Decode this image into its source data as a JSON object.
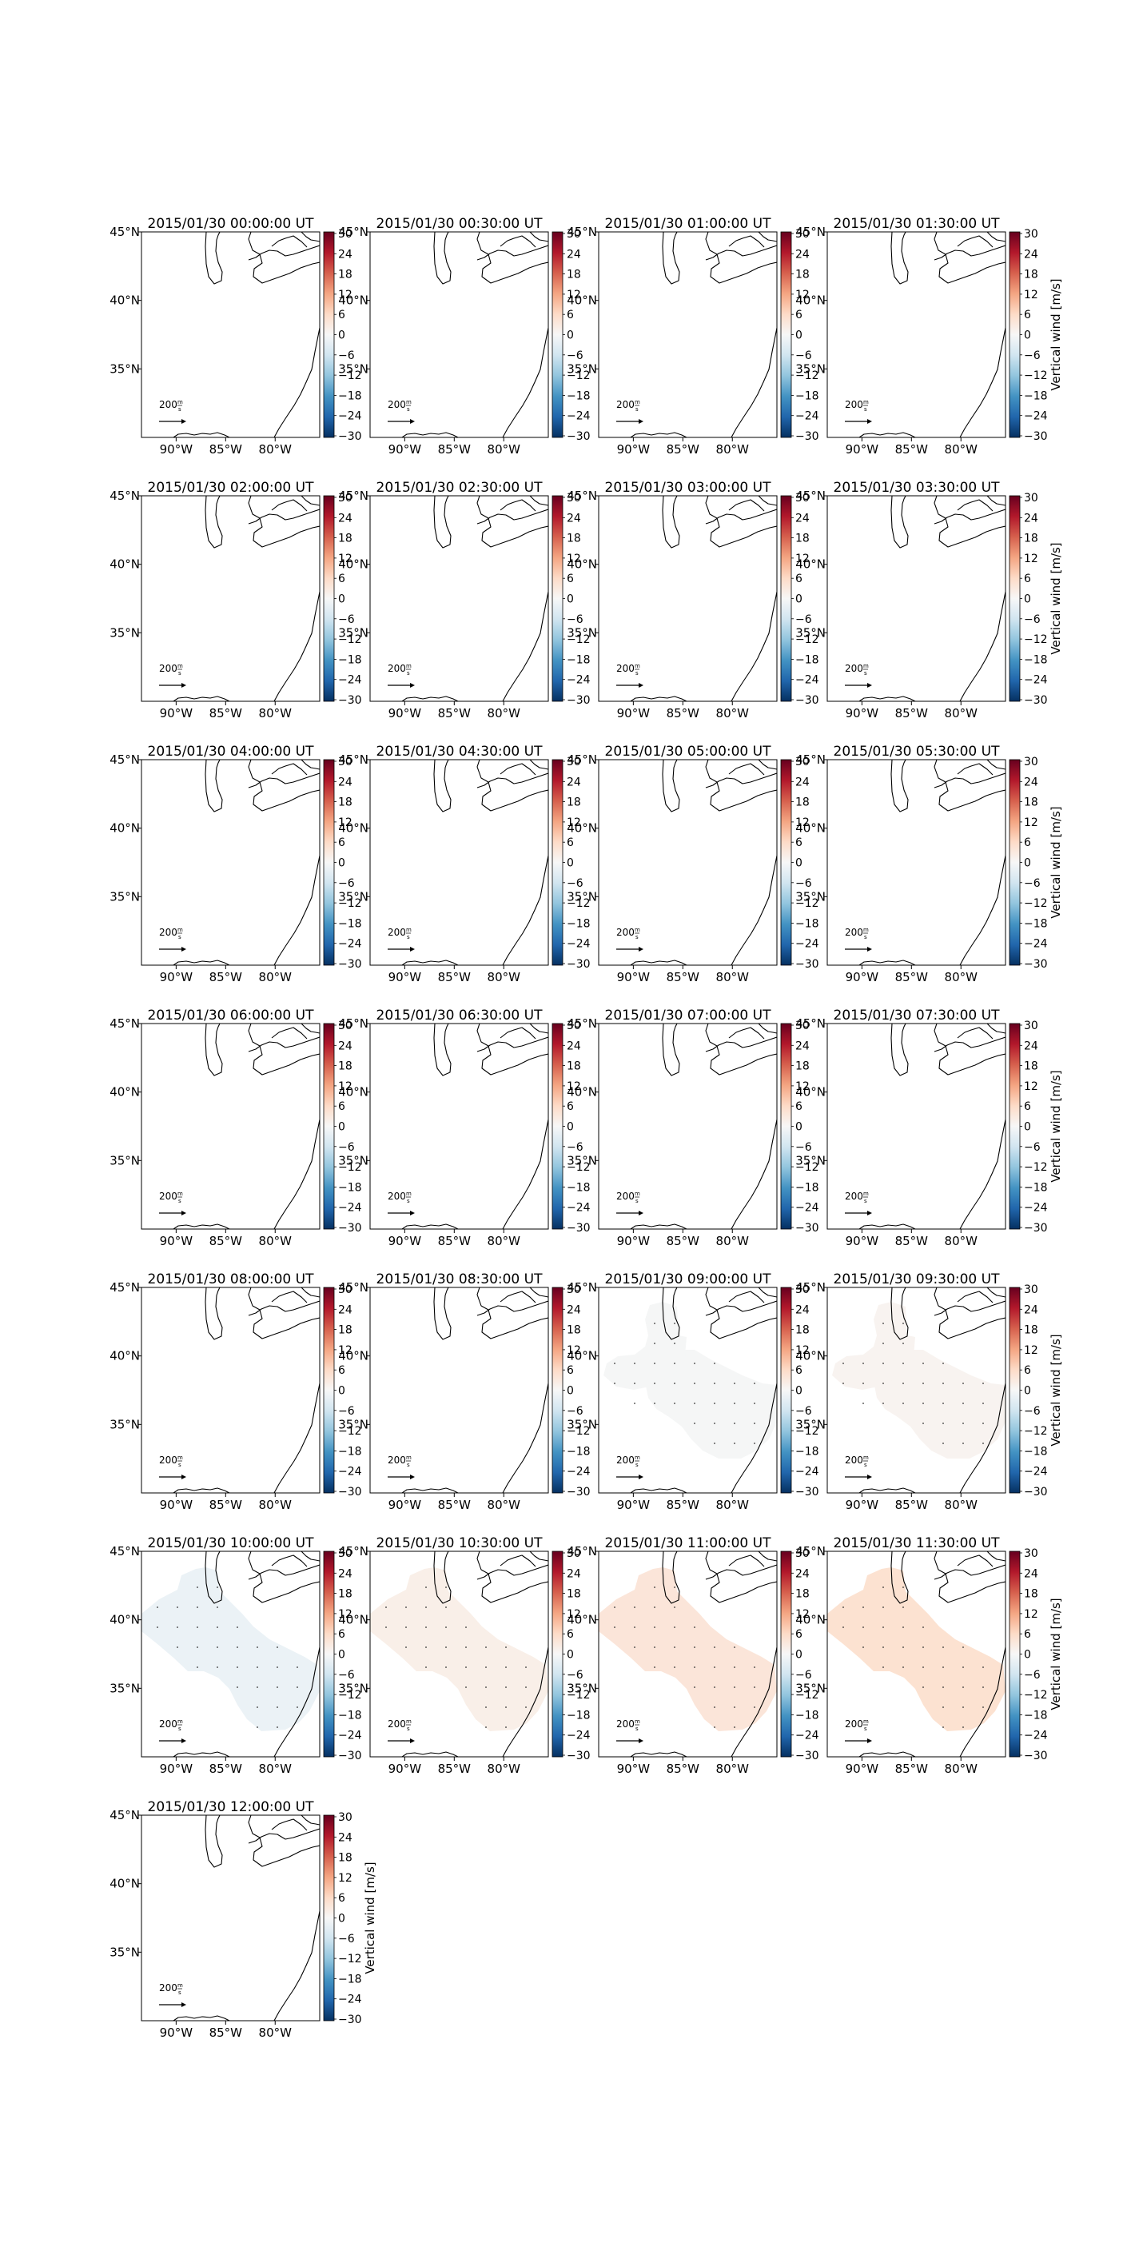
{
  "figure": {
    "colorbar_label": "Vertical wind [m/s]",
    "colorbar_ticks": [
      "30",
      "24",
      "18",
      "12",
      "6",
      "0",
      "−6",
      "−12",
      "−18",
      "−24",
      "−30"
    ],
    "lon_ticks": [
      "90°W",
      "85°W",
      "80°W"
    ],
    "lat_ticks": [
      "45°N",
      "40°N",
      "35°N"
    ],
    "scale_label": "200",
    "scale_unit_top": "m",
    "scale_unit_bottom": "s",
    "colormap": "RdBu_r",
    "colors": {
      "negative_extreme": "#053061",
      "zero": "#f7f7f7",
      "positive_extreme": "#67001f",
      "coast": "#000000"
    }
  },
  "chart_data": [
    {
      "type": "heatmap",
      "title": "2015/01/30 00:00:00 UT",
      "mean_vertical_wind": null,
      "clim": [
        -30,
        30
      ]
    },
    {
      "type": "heatmap",
      "title": "2015/01/30 00:30:00 UT",
      "mean_vertical_wind": null,
      "clim": [
        -30,
        30
      ]
    },
    {
      "type": "heatmap",
      "title": "2015/01/30 01:00:00 UT",
      "mean_vertical_wind": null,
      "clim": [
        -30,
        30
      ]
    },
    {
      "type": "heatmap",
      "title": "2015/01/30 01:30:00 UT",
      "mean_vertical_wind": null,
      "clim": [
        -30,
        30
      ]
    },
    {
      "type": "heatmap",
      "title": "2015/01/30 02:00:00 UT",
      "mean_vertical_wind": null,
      "clim": [
        -30,
        30
      ]
    },
    {
      "type": "heatmap",
      "title": "2015/01/30 02:30:00 UT",
      "mean_vertical_wind": null,
      "clim": [
        -30,
        30
      ]
    },
    {
      "type": "heatmap",
      "title": "2015/01/30 03:00:00 UT",
      "mean_vertical_wind": null,
      "clim": [
        -30,
        30
      ]
    },
    {
      "type": "heatmap",
      "title": "2015/01/30 03:30:00 UT",
      "mean_vertical_wind": null,
      "clim": [
        -30,
        30
      ]
    },
    {
      "type": "heatmap",
      "title": "2015/01/30 04:00:00 UT",
      "mean_vertical_wind": null,
      "clim": [
        -30,
        30
      ]
    },
    {
      "type": "heatmap",
      "title": "2015/01/30 04:30:00 UT",
      "mean_vertical_wind": null,
      "clim": [
        -30,
        30
      ]
    },
    {
      "type": "heatmap",
      "title": "2015/01/30 05:00:00 UT",
      "mean_vertical_wind": null,
      "clim": [
        -30,
        30
      ]
    },
    {
      "type": "heatmap",
      "title": "2015/01/30 05:30:00 UT",
      "mean_vertical_wind": null,
      "clim": [
        -30,
        30
      ]
    },
    {
      "type": "heatmap",
      "title": "2015/01/30 06:00:00 UT",
      "mean_vertical_wind": null,
      "clim": [
        -30,
        30
      ]
    },
    {
      "type": "heatmap",
      "title": "2015/01/30 06:30:00 UT",
      "mean_vertical_wind": null,
      "clim": [
        -30,
        30
      ]
    },
    {
      "type": "heatmap",
      "title": "2015/01/30 07:00:00 UT",
      "mean_vertical_wind": null,
      "clim": [
        -30,
        30
      ]
    },
    {
      "type": "heatmap",
      "title": "2015/01/30 07:30:00 UT",
      "mean_vertical_wind": null,
      "clim": [
        -30,
        30
      ]
    },
    {
      "type": "heatmap",
      "title": "2015/01/30 08:00:00 UT",
      "mean_vertical_wind": null,
      "clim": [
        -30,
        30
      ]
    },
    {
      "type": "heatmap",
      "title": "2015/01/30 08:30:00 UT",
      "mean_vertical_wind": null,
      "clim": [
        -30,
        30
      ]
    },
    {
      "type": "heatmap",
      "title": "2015/01/30 09:00:00 UT",
      "mean_vertical_wind": -0.5,
      "region": "split",
      "clim": [
        -30,
        30
      ]
    },
    {
      "type": "heatmap",
      "title": "2015/01/30 09:30:00 UT",
      "mean_vertical_wind": 1,
      "region": "split",
      "clim": [
        -30,
        30
      ]
    },
    {
      "type": "heatmap",
      "title": "2015/01/30 10:00:00 UT",
      "mean_vertical_wind": -2,
      "region": "full",
      "clim": [
        -30,
        30
      ]
    },
    {
      "type": "heatmap",
      "title": "2015/01/30 10:30:00 UT",
      "mean_vertical_wind": 2,
      "region": "full",
      "clim": [
        -30,
        30
      ]
    },
    {
      "type": "heatmap",
      "title": "2015/01/30 11:00:00 UT",
      "mean_vertical_wind": 4,
      "region": "full",
      "clim": [
        -30,
        30
      ]
    },
    {
      "type": "heatmap",
      "title": "2015/01/30 11:30:00 UT",
      "mean_vertical_wind": 5,
      "region": "full",
      "clim": [
        -30,
        30
      ]
    },
    {
      "type": "heatmap",
      "title": "2015/01/30 12:00:00 UT",
      "mean_vertical_wind": null,
      "clim": [
        -30,
        30
      ]
    }
  ]
}
